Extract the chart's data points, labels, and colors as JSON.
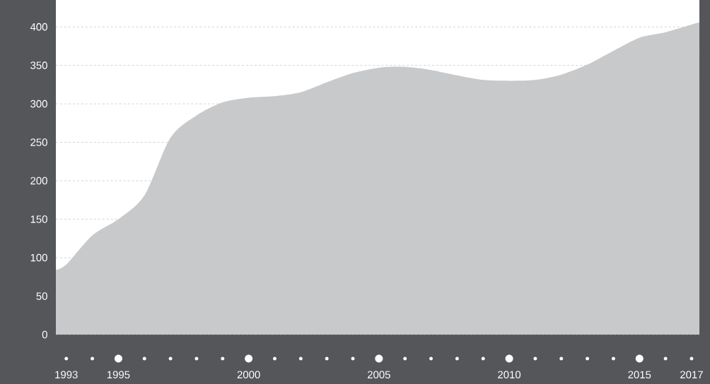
{
  "chart_data": {
    "type": "area",
    "x": [
      1992.6,
      1993,
      1994,
      1995,
      1996,
      1997,
      1998,
      1999,
      2000,
      2001,
      2002,
      2003,
      2004,
      2005,
      2006,
      2007,
      2008,
      2009,
      2010,
      2011,
      2012,
      2013,
      2014,
      2015,
      2016,
      2017,
      2017.3
    ],
    "values": [
      84,
      91,
      129,
      150,
      181,
      256,
      285,
      302,
      308,
      310,
      315,
      328,
      340,
      347,
      348,
      344,
      337,
      331,
      330,
      331,
      338,
      351,
      369,
      386,
      393,
      403,
      406
    ],
    "color": "#c8c9cb",
    "xlim": [
      1992.6,
      2017.3
    ],
    "ylim": [
      0,
      435
    ],
    "xticks": [
      1993,
      1995,
      2000,
      2005,
      2010,
      2015,
      2017
    ],
    "yticks": [
      0,
      50,
      100,
      150,
      200,
      250,
      300,
      350,
      400
    ],
    "grid": "y"
  }
}
